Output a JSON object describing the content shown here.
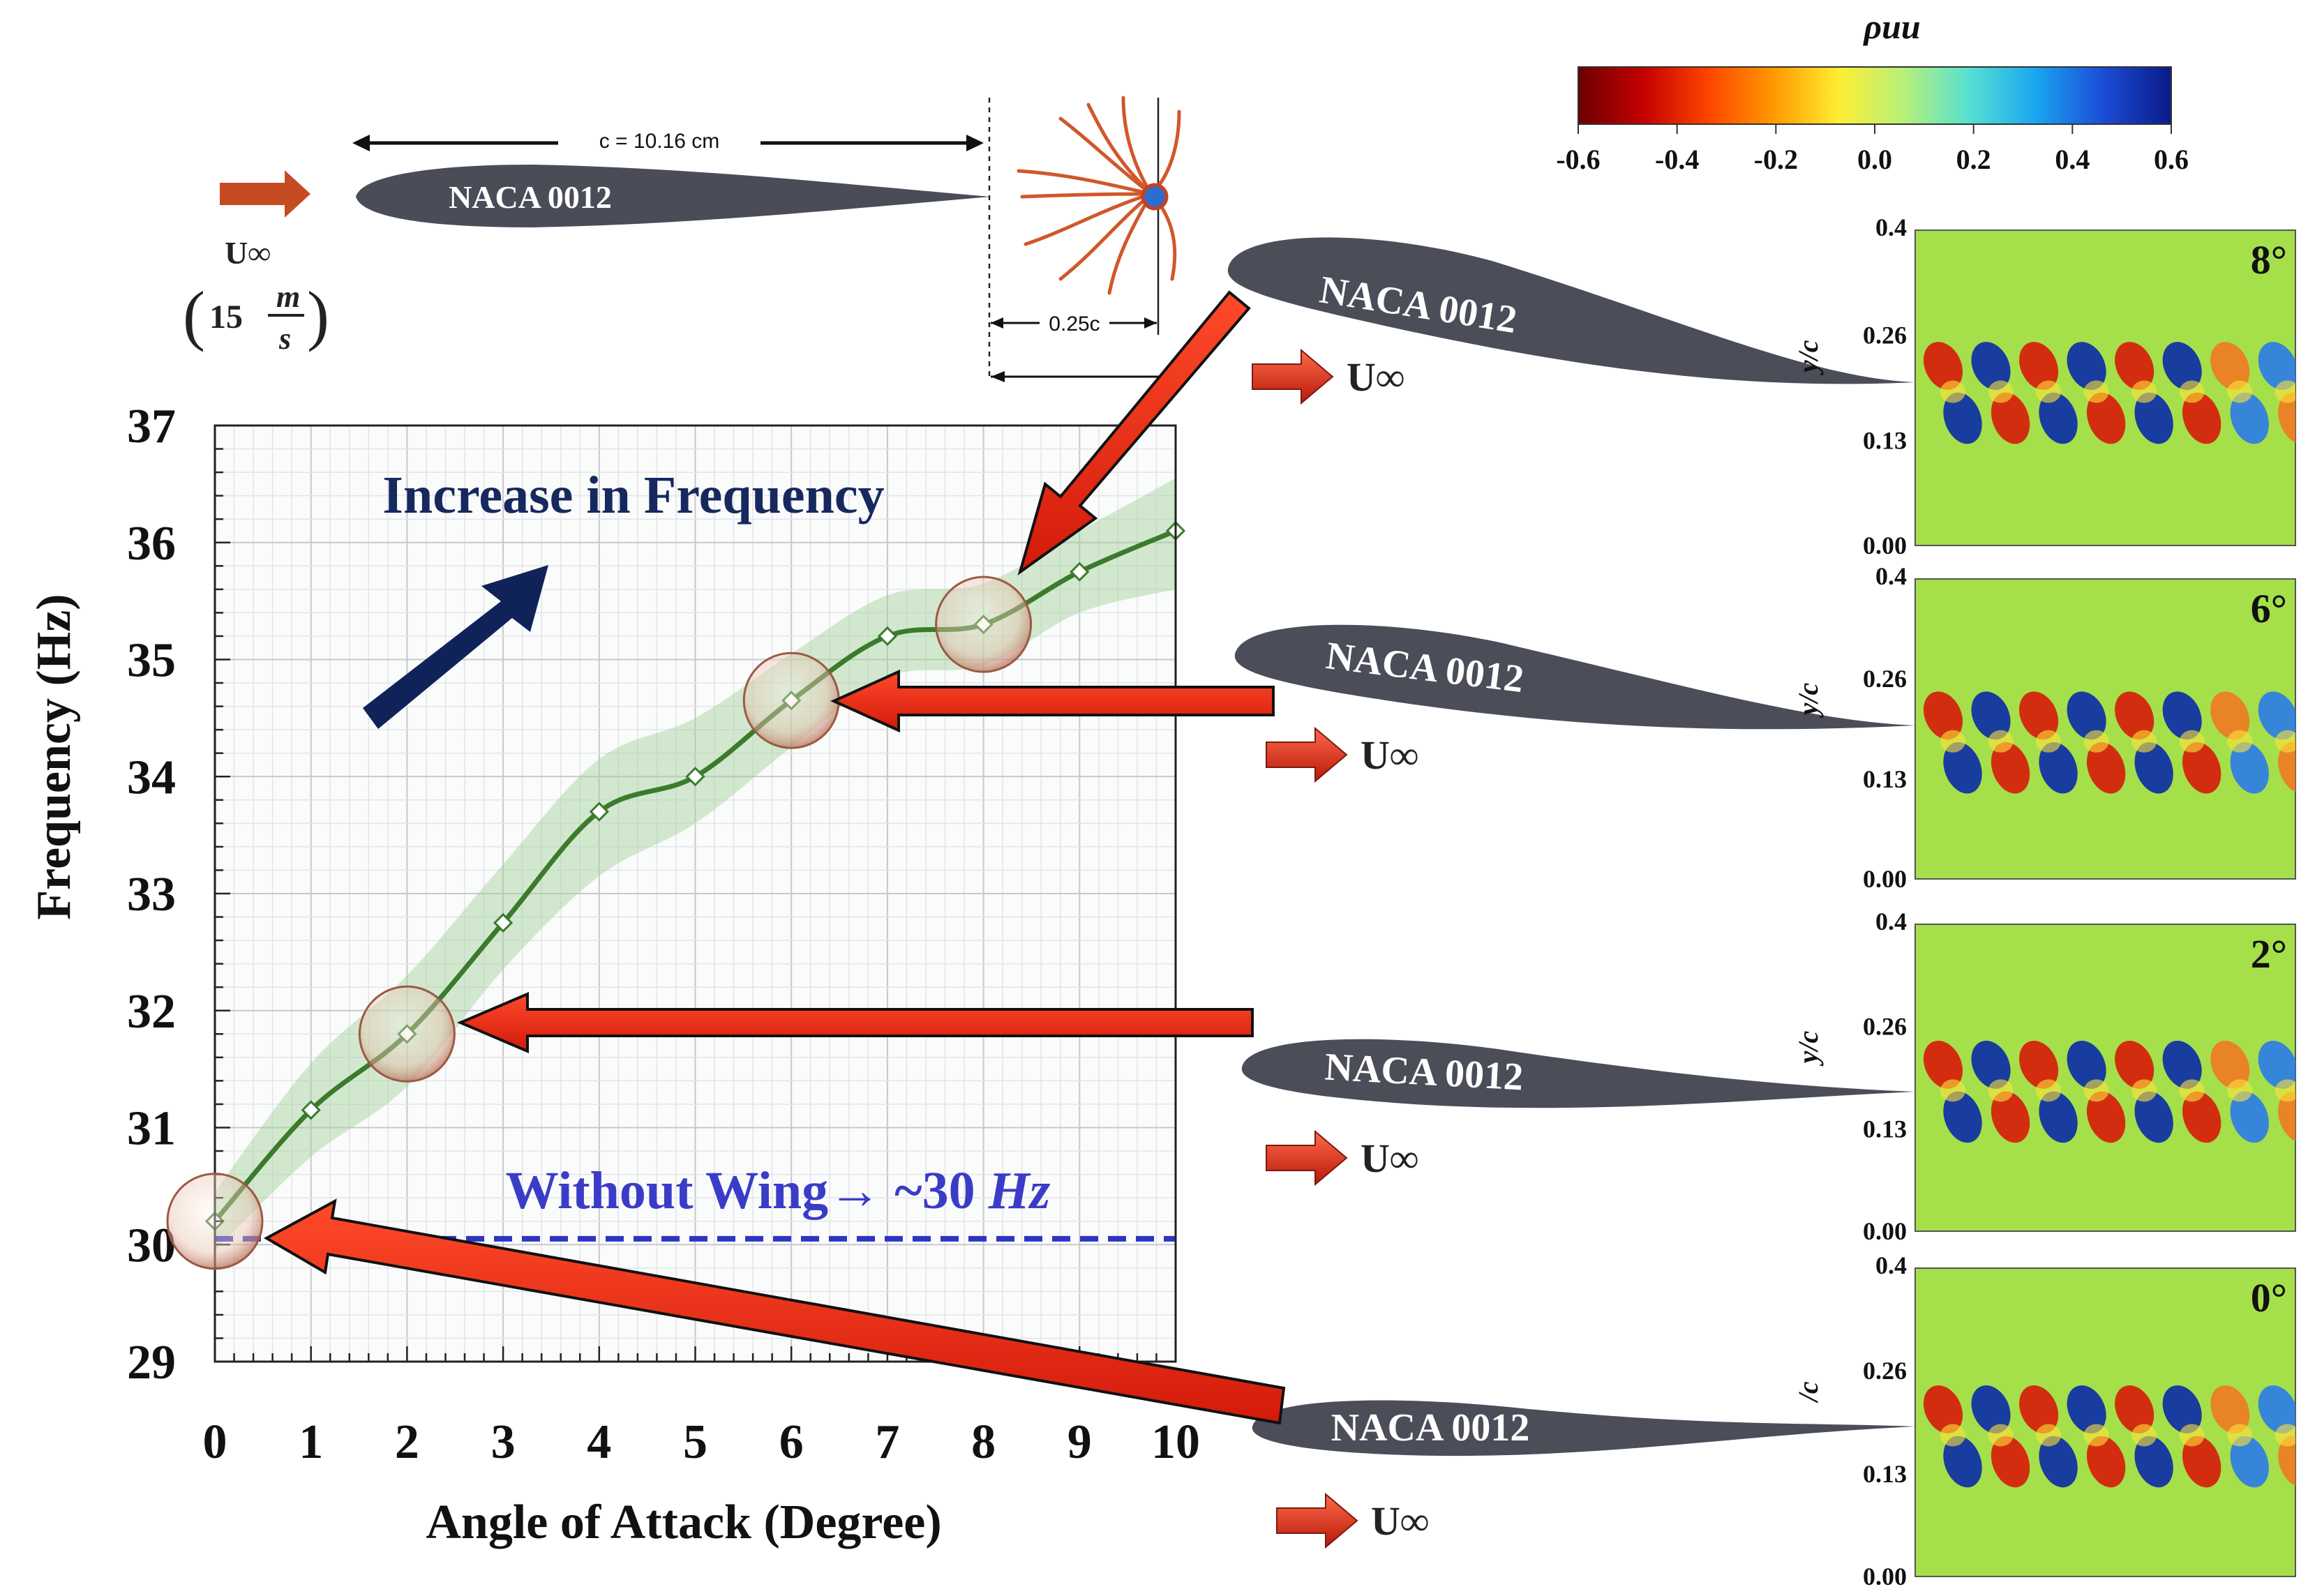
{
  "schematic": {
    "chord_label": "c = 10.16 cm",
    "airfoil_label": "NACA 0012",
    "freestream_symbol": "U∞",
    "freestream_speed": "15",
    "speed_unit_num": "m",
    "speed_unit_den": "s",
    "offset_label": "0.25c"
  },
  "colorbar": {
    "title": "ρuu",
    "ticks": [
      "-0.6",
      "-0.4",
      "-0.2",
      "0.0",
      "0.2",
      "0.4",
      "0.6"
    ],
    "colors": [
      "#6b0000",
      "#c40000",
      "#ff4500",
      "#ff9900",
      "#ffee33",
      "#b6f07a",
      "#55e0d2",
      "#1aa7f0",
      "#1c4fd8",
      "#0a1a88"
    ]
  },
  "annotations": {
    "increase_label": "Increase in Frequency",
    "baseline_label": "Without Wing→ ~30",
    "baseline_unit": "Hz",
    "baseline_value": 30.05,
    "highlight_x": [
      0,
      2,
      6,
      8
    ]
  },
  "chart_data": {
    "type": "line",
    "title": "",
    "xlabel": "Angle of Attack (Degree)",
    "ylabel": "Frequency (Hz)",
    "xlim": [
      0,
      10
    ],
    "ylim": [
      29,
      37
    ],
    "grid": true,
    "x_ticks": [
      "0",
      "1",
      "2",
      "3",
      "4",
      "5",
      "6",
      "7",
      "8",
      "9",
      "10"
    ],
    "y_ticks": [
      "29",
      "30",
      "31",
      "32",
      "33",
      "34",
      "35",
      "36",
      "37"
    ],
    "x": [
      0,
      1,
      2,
      3,
      4,
      5,
      6,
      7,
      8,
      9,
      10
    ],
    "y": [
      30.2,
      31.15,
      31.8,
      32.75,
      33.7,
      34.0,
      34.65,
      35.2,
      35.3,
      35.75,
      36.1
    ],
    "band_lower": [
      29.95,
      30.75,
      31.35,
      32.35,
      33.15,
      33.6,
      34.25,
      34.85,
      34.95,
      35.4,
      35.6
    ],
    "band_upper": [
      30.45,
      31.55,
      32.3,
      33.25,
      34.15,
      34.5,
      35.05,
      35.55,
      35.65,
      36.1,
      36.55
    ]
  },
  "wake_panels": [
    {
      "angle_label": "8°",
      "airfoil_label": "NACA 0012",
      "freestream_symbol": "U∞",
      "y_axis_label": "y/c",
      "y_ticks": [
        "0.4",
        "0.26",
        "0.13",
        "0.00"
      ]
    },
    {
      "angle_label": "6°",
      "airfoil_label": "NACA 0012",
      "freestream_symbol": "U∞",
      "y_axis_label": "y/c",
      "y_ticks": [
        "0.4",
        "0.26",
        "0.13",
        "0.00"
      ]
    },
    {
      "angle_label": "2°",
      "airfoil_label": "NACA 0012",
      "freestream_symbol": "U∞",
      "y_axis_label": "y/c",
      "y_ticks": [
        "0.4",
        "0.26",
        "0.13",
        "0.00"
      ]
    },
    {
      "angle_label": "0°",
      "airfoil_label": "NACA 0012",
      "freestream_symbol": "U∞",
      "y_axis_label": "/c",
      "y_ticks": [
        "0.4",
        "0.26",
        "0.13",
        "0.00"
      ]
    }
  ]
}
